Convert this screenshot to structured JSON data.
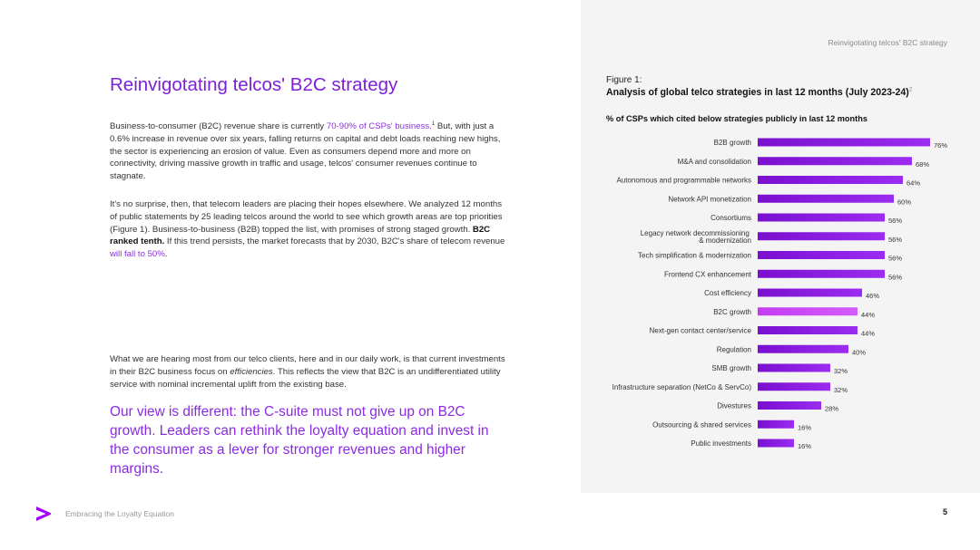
{
  "header": {
    "running_title": "Reinvigotating telcos' B2C strategy"
  },
  "main": {
    "title": "Reinvigotating telcos' B2C strategy",
    "para1": {
      "t1": "Business-to-consumer (B2C) revenue share is currently ",
      "link1": "70-90% of CSPs' business.",
      "sup1": "1",
      "t2": " But, with just a 0.6% increase in revenue over six years, falling returns on capital and debt loads reaching new highs, the sector is experiencing an erosion of value. Even as consumers depend more and more on connectivity, driving massive growth in traffic and usage, telcos' consumer revenues continue to stagnate."
    },
    "para2": {
      "t1": "It's no surprise, then, that telecom leaders are placing their hopes elsewhere. We analyzed 12 months of public statements by 25 leading telcos around the world to see which growth areas are top priorities (Figure 1). Business-to-business (B2B) topped the list, with promises of strong staged growth. ",
      "bold": "B2C ranked tenth.",
      "t2": " If this trend persists, the market forecasts that by 2030, B2C's share of telecom revenue ",
      "link": "will fall to 50%",
      "t3": "."
    },
    "para3": {
      "t1": "What we are hearing most from our telco clients, here and in our daily work, is that current investments in their B2C business focus on ",
      "em": "efficiencies",
      "t2": ". This reflects the view that B2C is an undifferentiated utility service with nominal incremental uplift from the existing base."
    },
    "callout": "Our view is different: the C-suite must not give up on B2C growth. Leaders can rethink the loyalty equation and invest in the consumer as a lever for stronger revenues and higher margins."
  },
  "figure": {
    "label": "Figure 1:",
    "title": "Analysis of global telco strategies in last 12 months (July 2023-24)",
    "title_sup": "2",
    "subtitle": "% of CSPs which cited below strategies publicly in last 12 months"
  },
  "chart_data": {
    "type": "bar",
    "orientation": "horizontal",
    "categories": [
      "B2B growth",
      "M&A and consolidation",
      "Autonomous and programmable networks",
      "Network API monetization",
      "Consortiums",
      "Legacy network decommissioning & modernization",
      "Tech simplification & modernization",
      "Frontend CX enhancement",
      "Cost efficiency",
      "B2C growth",
      "Next-gen contact center/service",
      "Regulation",
      "SMB growth",
      "Infrastructure separation (NetCo & ServCo)",
      "Divestures",
      "Outsourcing & shared services",
      "Public investments"
    ],
    "values": [
      76,
      68,
      64,
      60,
      56,
      56,
      56,
      56,
      46,
      44,
      44,
      40,
      32,
      32,
      28,
      16,
      16
    ],
    "value_labels": [
      "76%",
      "68%",
      "64%",
      "60%",
      "56%",
      "56%",
      "56%",
      "56%",
      "46%",
      "44%",
      "44%",
      "40%",
      "32%",
      "32%",
      "28%",
      "16%",
      "16%"
    ],
    "highlight": "B2C growth",
    "xlim": [
      0,
      100
    ],
    "grid": false,
    "colors": {
      "bar": "#7a0fd0",
      "highlight": "#c43cf2"
    }
  },
  "footer": {
    "doc_title": "Embracing the Loyalty Equation",
    "page_number": "5"
  },
  "colors": {
    "accent": "#7e1fd6",
    "logo": "#a100ff"
  }
}
